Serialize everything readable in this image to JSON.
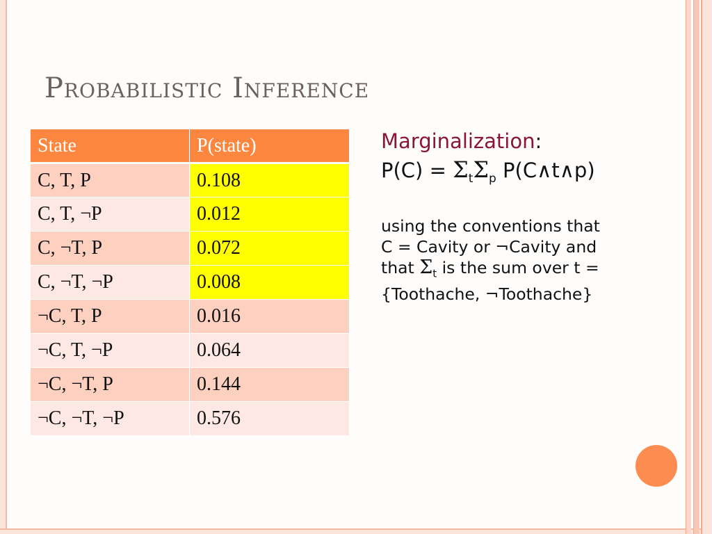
{
  "title": "Probabilistic Inference",
  "table": {
    "headers": [
      "State",
      "P(state)"
    ],
    "rows": [
      {
        "state": "C, T, P",
        "p": "0.108",
        "highlight": true
      },
      {
        "state": "C, T, ¬P",
        "p": "0.012",
        "highlight": true
      },
      {
        "state": "C, ¬T, P",
        "p": "0.072",
        "highlight": true
      },
      {
        "state": "C, ¬T, ¬P",
        "p": "0.008",
        "highlight": true
      },
      {
        "state": "¬C, T, P",
        "p": "0.016",
        "highlight": false
      },
      {
        "state": "¬C, T, ¬P",
        "p": "0.064",
        "highlight": false
      },
      {
        "state": "¬C, ¬T, P",
        "p": "0.144",
        "highlight": false
      },
      {
        "state": "¬C, ¬T, ¬P",
        "p": "0.576",
        "highlight": false
      }
    ],
    "highlight_color": "#ffff00",
    "header_color": "#fe8740"
  },
  "marginalization": {
    "heading": "Marginalization",
    "colon": ":",
    "formula_lhs": "P(C) = ",
    "sigma": "Σ",
    "sub_t": "t",
    "sub_p": "p",
    "formula_rhs": " P(C∧t∧p)"
  },
  "notes": {
    "line1": "using the conventions that",
    "line2": "C = Cavity or ¬Cavity and",
    "line3_prefix": "that ",
    "line3_suffix": " is the sum over t =",
    "line4": "{Toothache, ¬Toothache}"
  },
  "accent_colors": {
    "heading": "#8b1538",
    "dot": "#fd8c50"
  }
}
